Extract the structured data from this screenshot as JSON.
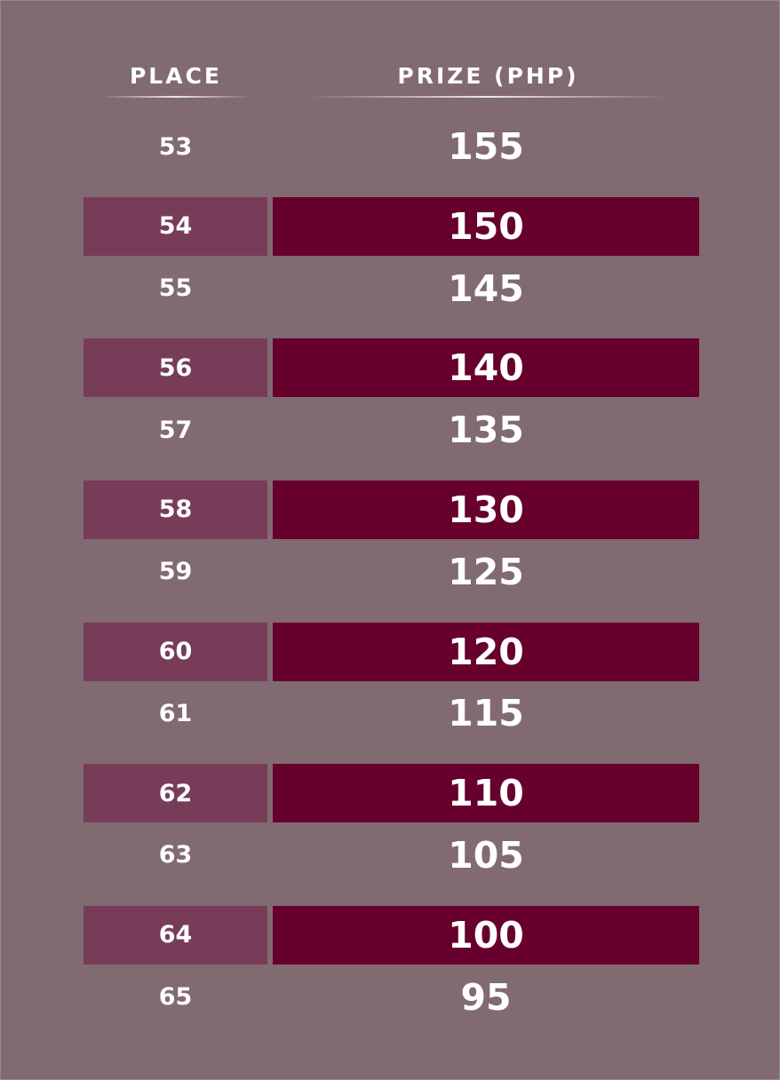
{
  "headers": {
    "place": "PLACE",
    "prize": "PRIZE (PHP)"
  },
  "rows": [
    {
      "place": "53",
      "prize": "155",
      "shaded": false
    },
    {
      "place": "54",
      "prize": "150",
      "shaded": true
    },
    {
      "place": "55",
      "prize": "145",
      "shaded": false
    },
    {
      "place": "56",
      "prize": "140",
      "shaded": true
    },
    {
      "place": "57",
      "prize": "135",
      "shaded": false
    },
    {
      "place": "58",
      "prize": "130",
      "shaded": true
    },
    {
      "place": "59",
      "prize": "125",
      "shaded": false
    },
    {
      "place": "60",
      "prize": "120",
      "shaded": true
    },
    {
      "place": "61",
      "prize": "115",
      "shaded": false
    },
    {
      "place": "62",
      "prize": "110",
      "shaded": true
    },
    {
      "place": "63",
      "prize": "105",
      "shaded": false
    },
    {
      "place": "64",
      "prize": "100",
      "shaded": true
    },
    {
      "place": "65",
      "prize": "95",
      "shaded": false
    }
  ],
  "colors": {
    "background": "#816a71",
    "place_band": "#773d58",
    "prize_band": "#67002c",
    "text": "#ffffff"
  }
}
